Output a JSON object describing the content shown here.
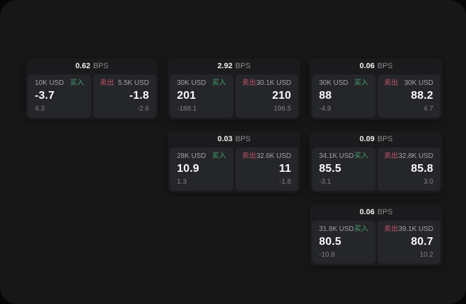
{
  "colors": {
    "buy_green": "#46a46f",
    "sell_red": "#c2556a",
    "surface": "#171718",
    "card": "#1b1b1d",
    "tile": "#252629"
  },
  "labels": {
    "bps_unit": "BPS",
    "buy_side": "买入",
    "sell_side": "卖出"
  },
  "cards": [
    {
      "grid": {
        "row": 1,
        "col": 1
      },
      "bps_value": "0.62",
      "bps_unit": "BPS",
      "buy": {
        "notional": "10K USD",
        "side": "买入",
        "price": "-3.7",
        "delta": "4.3"
      },
      "sell": {
        "side": "卖出",
        "notional": "5.5K USD",
        "price": "-1.8",
        "delta": "-2.6"
      }
    },
    {
      "grid": {
        "row": 1,
        "col": 2
      },
      "bps_value": "2.92",
      "bps_unit": "BPS",
      "buy": {
        "notional": "30K USD",
        "side": "买入",
        "price": "201",
        "delta": "-188.1"
      },
      "sell": {
        "side": "卖出",
        "notional": "30.1K USD",
        "price": "210",
        "delta": "196.5"
      }
    },
    {
      "grid": {
        "row": 1,
        "col": 3
      },
      "bps_value": "0.06",
      "bps_unit": "BPS",
      "buy": {
        "notional": "30K USD",
        "side": "买入",
        "price": "88",
        "delta": "-4.9"
      },
      "sell": {
        "side": "卖出",
        "notional": "30K USD",
        "price": "88.2",
        "delta": "4.7"
      }
    },
    {
      "grid": {
        "row": 2,
        "col": 2
      },
      "bps_value": "0.03",
      "bps_unit": "BPS",
      "buy": {
        "notional": "28K USD",
        "side": "买入",
        "price": "10.9",
        "delta": "1.3"
      },
      "sell": {
        "side": "卖出",
        "notional": "32.6K USD",
        "price": "11",
        "delta": "-1.8"
      }
    },
    {
      "grid": {
        "row": 2,
        "col": 3
      },
      "bps_value": "0.09",
      "bps_unit": "BPS",
      "buy": {
        "notional": "34.1K USD",
        "side": "买入",
        "price": "85.5",
        "delta": "-3.1"
      },
      "sell": {
        "side": "卖出",
        "notional": "32.8K USD",
        "price": "85.8",
        "delta": "3.0"
      }
    },
    {
      "grid": {
        "row": 3,
        "col": 3
      },
      "bps_value": "0.06",
      "bps_unit": "BPS",
      "buy": {
        "notional": "31.8K USD",
        "side": "买入",
        "price": "80.5",
        "delta": "-10.8"
      },
      "sell": {
        "side": "卖出",
        "notional": "39.1K USD",
        "price": "80.7",
        "delta": "10.2"
      }
    }
  ]
}
